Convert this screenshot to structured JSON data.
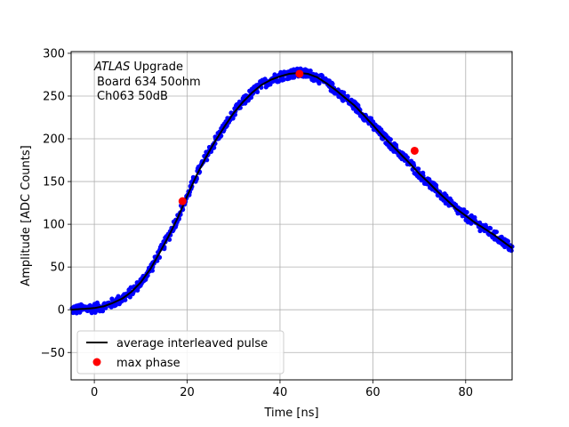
{
  "chart_data": {
    "type": "scatter",
    "xlabel": "Time [ns]",
    "ylabel": "Amplitude [ADC Counts]",
    "xlim": [
      -5,
      90
    ],
    "ylim": [
      -82,
      302
    ],
    "xticks": [
      0,
      20,
      40,
      60,
      80
    ],
    "yticks": [
      -50,
      0,
      50,
      100,
      150,
      200,
      250,
      300
    ],
    "grid": true,
    "legend_position": "lower-left",
    "annotation": {
      "brand": "ATLAS",
      "brand_suffix": " Upgrade",
      "line2": "Board 634 50ohm",
      "line3": "Ch063 50dB"
    },
    "series": [
      {
        "name": "average interleaved pulse",
        "kind": "line",
        "color": "#000000",
        "x": [
          -5,
          0,
          2,
          4,
          6,
          8,
          10,
          12,
          14,
          16,
          18,
          20,
          22,
          24,
          26,
          28,
          30,
          32,
          34,
          36,
          38,
          40,
          42,
          44,
          46,
          48,
          50,
          52,
          54,
          56,
          58,
          60,
          62,
          64,
          66,
          68,
          70,
          72,
          74,
          76,
          78,
          80,
          82,
          84,
          86,
          88,
          90
        ],
        "y": [
          0,
          2,
          4,
          8,
          13,
          21,
          32,
          47,
          66,
          86,
          108,
          133,
          157,
          178,
          197,
          214,
          230,
          243,
          254,
          263,
          269,
          273,
          276,
          277,
          276,
          272,
          265,
          257,
          248,
          239,
          228,
          216,
          204,
          193,
          182,
          171,
          159,
          149,
          138,
          128,
          118,
          110,
          102,
          95,
          88,
          80,
          72
        ]
      },
      {
        "name": "",
        "kind": "scatter",
        "color": "#0000ff",
        "description_points": "dense blue samples scattered around the average pulse"
      },
      {
        "name": "max phase",
        "kind": "marker",
        "color": "#ff0000",
        "x": [
          19,
          44.2,
          69
        ],
        "y": [
          127,
          276,
          186
        ]
      }
    ]
  }
}
